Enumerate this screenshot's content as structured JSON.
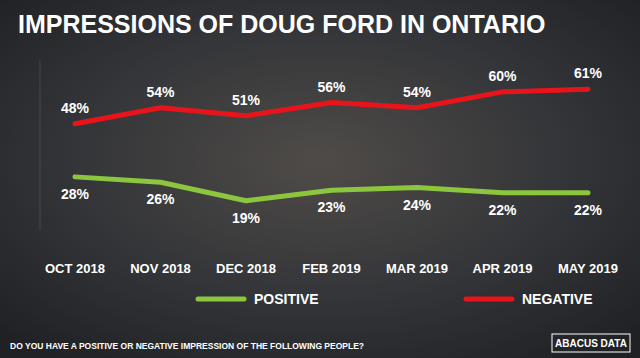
{
  "chart_data": {
    "type": "line",
    "title": "IMPRESSIONS OF DOUG FORD IN ONTARIO",
    "caption": "DO YOU HAVE A POSITIVE OR NEGATIVE IMPRESSION OF THE FOLLOWING PEOPLE?",
    "source": "ABACUS DATA",
    "categories": [
      "OCT 2018",
      "NOV 2018",
      "DEC 2018",
      "FEB 2019",
      "MAR 2019",
      "APR 2019",
      "MAY 2019"
    ],
    "series": [
      {
        "name": "POSITIVE",
        "color": "#8cc63f",
        "values": [
          28,
          26,
          19,
          23,
          24,
          22,
          22
        ],
        "value_labels": [
          "28%",
          "26%",
          "19%",
          "23%",
          "24%",
          "22%",
          "22%"
        ]
      },
      {
        "name": "NEGATIVE",
        "color": "#e8141c",
        "values": [
          48,
          54,
          51,
          56,
          54,
          60,
          61
        ],
        "value_labels": [
          "48%",
          "54%",
          "51%",
          "56%",
          "54%",
          "60%",
          "61%"
        ]
      }
    ],
    "ylim": [
      8,
      72
    ],
    "tick_labels": "x",
    "data_labels": true,
    "legend": "bottom",
    "grid": false
  }
}
